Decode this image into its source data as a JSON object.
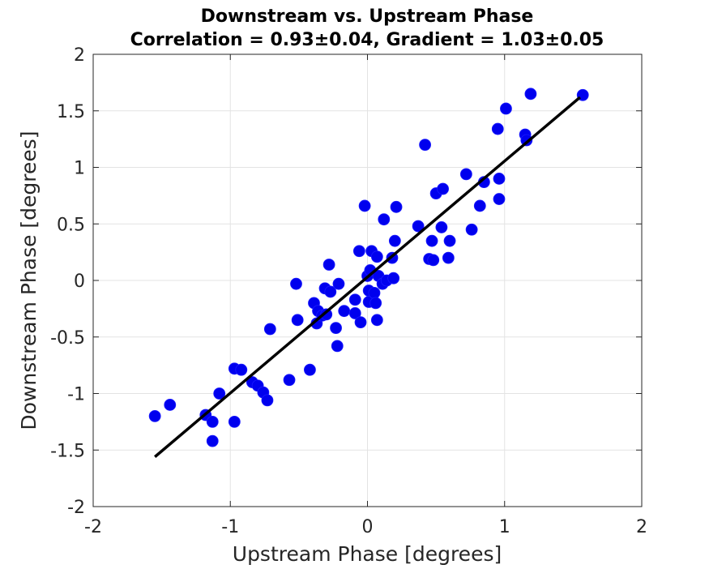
{
  "chart_data": {
    "type": "scatter",
    "title": "Downstream vs. Upstream Phase",
    "subtitle": "Correlation = 0.93±0.04, Gradient = 1.03±0.05",
    "xlabel": "Upstream Phase [degrees]",
    "ylabel": "Downstream Phase [degrees]",
    "xlim": [
      -2,
      2
    ],
    "ylim": [
      -2,
      2
    ],
    "xticks": [
      -2,
      -1,
      0,
      1,
      2
    ],
    "yticks": [
      -2,
      -1.5,
      -1,
      -0.5,
      0,
      0.5,
      1,
      1.5,
      2
    ],
    "xtick_labels": [
      "-2",
      "-1",
      "0",
      "1",
      "2"
    ],
    "ytick_labels": [
      "-2",
      "-1.5",
      "-1",
      "-0.5",
      "0",
      "0.5",
      "1",
      "1.5",
      "2"
    ],
    "grid": true,
    "colors": {
      "points": "#0000ee",
      "fit_line": "#000000"
    },
    "points": [
      [
        -1.55,
        -1.2
      ],
      [
        -1.44,
        -1.1
      ],
      [
        -1.18,
        -1.19
      ],
      [
        -1.13,
        -1.25
      ],
      [
        -1.13,
        -1.42
      ],
      [
        -1.08,
        -1.0
      ],
      [
        -0.97,
        -0.78
      ],
      [
        -0.97,
        -1.25
      ],
      [
        -0.92,
        -0.79
      ],
      [
        -0.84,
        -0.9
      ],
      [
        -0.8,
        -0.93
      ],
      [
        -0.76,
        -0.99
      ],
      [
        -0.73,
        -1.06
      ],
      [
        -0.71,
        -0.43
      ],
      [
        -0.57,
        -0.88
      ],
      [
        -0.52,
        -0.03
      ],
      [
        -0.51,
        -0.35
      ],
      [
        -0.42,
        -0.79
      ],
      [
        -0.39,
        -0.2
      ],
      [
        -0.37,
        -0.38
      ],
      [
        -0.36,
        -0.27
      ],
      [
        -0.33,
        -0.31
      ],
      [
        -0.31,
        -0.07
      ],
      [
        -0.3,
        -0.3
      ],
      [
        -0.28,
        0.14
      ],
      [
        -0.27,
        -0.1
      ],
      [
        -0.23,
        -0.42
      ],
      [
        -0.22,
        -0.58
      ],
      [
        -0.21,
        -0.03
      ],
      [
        -0.17,
        -0.27
      ],
      [
        -0.09,
        -0.17
      ],
      [
        -0.09,
        -0.29
      ],
      [
        -0.06,
        0.26
      ],
      [
        -0.05,
        -0.37
      ],
      [
        -0.02,
        0.66
      ],
      [
        0.0,
        0.04
      ],
      [
        0.01,
        -0.09
      ],
      [
        0.01,
        -0.19
      ],
      [
        0.02,
        0.09
      ],
      [
        0.03,
        0.26
      ],
      [
        0.05,
        -0.11
      ],
      [
        0.06,
        -0.2
      ],
      [
        0.07,
        0.21
      ],
      [
        0.07,
        -0.35
      ],
      [
        0.08,
        0.04
      ],
      [
        0.11,
        -0.03
      ],
      [
        0.12,
        0.54
      ],
      [
        0.14,
        0.0
      ],
      [
        0.18,
        0.2
      ],
      [
        0.19,
        0.02
      ],
      [
        0.2,
        0.35
      ],
      [
        0.21,
        0.65
      ],
      [
        0.37,
        0.48
      ],
      [
        0.42,
        1.2
      ],
      [
        0.45,
        0.19
      ],
      [
        0.47,
        0.35
      ],
      [
        0.48,
        0.18
      ],
      [
        0.5,
        0.77
      ],
      [
        0.54,
        0.47
      ],
      [
        0.55,
        0.81
      ],
      [
        0.59,
        0.2
      ],
      [
        0.6,
        0.35
      ],
      [
        0.72,
        0.94
      ],
      [
        0.76,
        0.45
      ],
      [
        0.82,
        0.66
      ],
      [
        0.85,
        0.87
      ],
      [
        0.95,
        1.34
      ],
      [
        0.96,
        0.9
      ],
      [
        0.96,
        0.72
      ],
      [
        1.01,
        1.52
      ],
      [
        1.15,
        1.29
      ],
      [
        1.16,
        1.24
      ],
      [
        1.19,
        1.65
      ],
      [
        1.57,
        1.64
      ]
    ],
    "fit_line": {
      "x": [
        -1.55,
        1.55
      ],
      "y": [
        -1.56,
        1.62
      ]
    }
  }
}
